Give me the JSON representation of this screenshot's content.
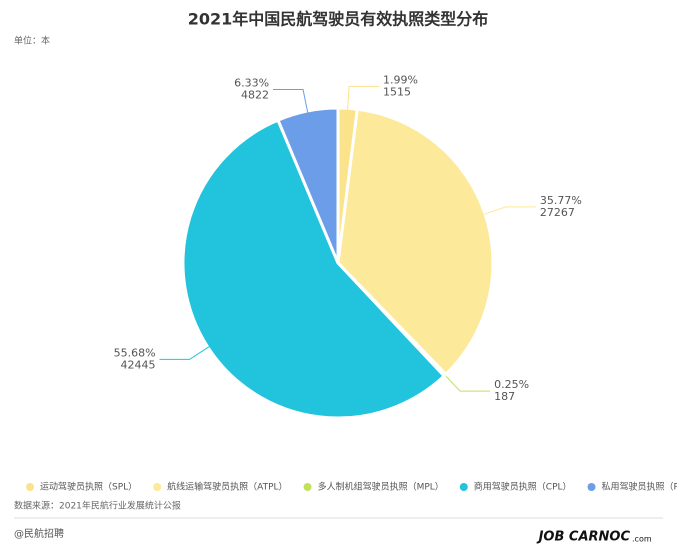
{
  "chart_data": {
    "type": "pie",
    "title": "2021年中国民航驾驶员有效执照类型分布",
    "unit_note": "单位：本",
    "categories": [
      "运动驾驶员执照（SPL）",
      "航线运输驾驶员执照（ATPL）",
      "多人制机组驾驶员执照（MPL）",
      "商用驾驶员执照（CPL）",
      "私用驾驶员执照（PPL）"
    ],
    "values": [
      1515,
      27267,
      187,
      42445,
      4822
    ],
    "percent_labels": [
      "1.99%",
      "35.77%",
      "0.25%",
      "55.68%",
      "6.33%"
    ],
    "colors": [
      "#fbe38b",
      "#fde99a",
      "#c3e05a",
      "#22c3dc",
      "#6b9de8"
    ],
    "source": "数据来源：2021年民航行业发展统计公报",
    "footer_left": "@民航招聘",
    "logo": "JOB CARNOC",
    "logo_suffix": ".com"
  }
}
